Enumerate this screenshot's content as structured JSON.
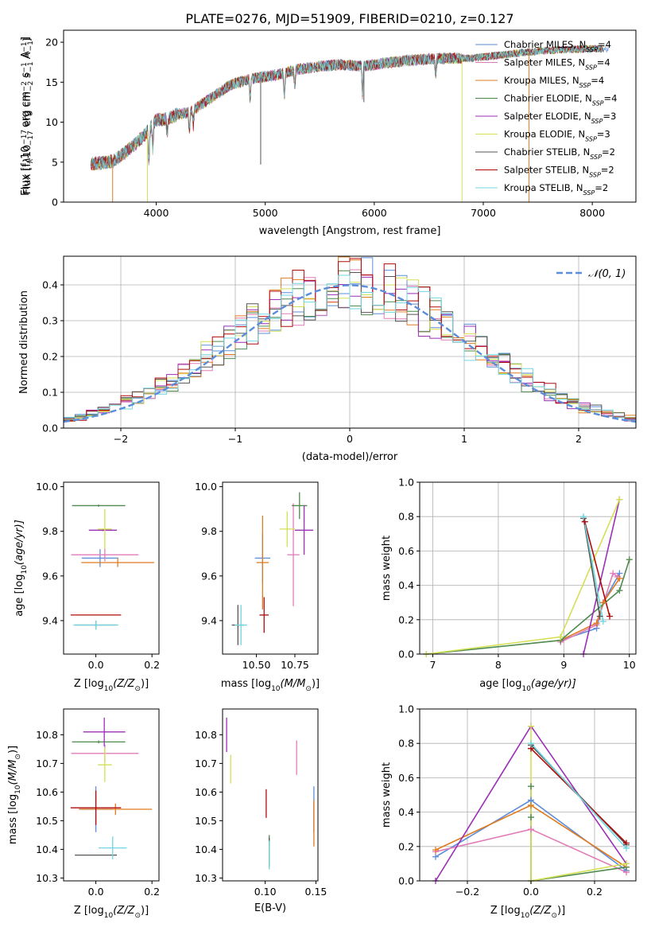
{
  "figure": {
    "title": "PLATE=0276, MJD=51909, FIBERID=0210, z=0.127"
  },
  "colors": {
    "chabrier_miles": "#5b8ddb",
    "salpeter_miles": "#e27cb8",
    "kroupa_miles": "#e07b20",
    "chabrier_elodie": "#4f8a4f",
    "salpeter_elodie": "#9b2fb5",
    "kroupa_elodie": "#d4e055",
    "chabrier_stelib": "#555555",
    "salpeter_stelib": "#b00b0b",
    "kroupa_stelib": "#70d6e0",
    "gauss": "#5b8ddb"
  },
  "chart_data": [
    {
      "id": "spectrum",
      "type": "line",
      "xlabel": "wavelength [Angstrom, rest frame]",
      "ylabel_parts": [
        "Flux [f",
        "λ",
        "10",
        "−17",
        " erg cm",
        "−2",
        " s",
        "−1",
        " A",
        "−1",
        "]"
      ],
      "xlim": [
        3150,
        8400
      ],
      "ylim": [
        0,
        21.5
      ],
      "xticks": [
        4000,
        5000,
        6000,
        7000,
        8000
      ],
      "yticks": [
        0,
        5,
        10,
        15,
        20
      ],
      "grid": false,
      "legend_position": "top-right",
      "legend": [
        {
          "label": "Chabrier MILES, N",
          "sub": "SSP",
          "suffix": "=4",
          "color_key": "chabrier_miles"
        },
        {
          "label": "Salpeter MILES, N",
          "sub": "SSP",
          "suffix": "=4",
          "color_key": "salpeter_miles"
        },
        {
          "label": "Kroupa MILES, N",
          "sub": "SSP",
          "suffix": "=4",
          "color_key": "kroupa_miles"
        },
        {
          "label": "Chabrier ELODIE, N",
          "sub": "SSP",
          "suffix": "=4",
          "color_key": "chabrier_elodie"
        },
        {
          "label": "Salpeter ELODIE, N",
          "sub": "SSP",
          "suffix": "=3",
          "color_key": "salpeter_elodie"
        },
        {
          "label": "Kroupa ELODIE, N",
          "sub": "SSP",
          "suffix": "=3",
          "color_key": "kroupa_elodie"
        },
        {
          "label": "Chabrier STELIB, N",
          "sub": "SSP",
          "suffix": "=2",
          "color_key": "chabrier_stelib"
        },
        {
          "label": "Salpeter STELIB, N",
          "sub": "SSP",
          "suffix": "=2",
          "color_key": "salpeter_stelib"
        },
        {
          "label": "Kroupa STELIB, N",
          "sub": "SSP",
          "suffix": "=2",
          "color_key": "kroupa_stelib"
        }
      ],
      "continuum": {
        "x": [
          3400,
          3500,
          3600,
          3700,
          3800,
          3900,
          4000,
          4100,
          4200,
          4300,
          4500,
          4700,
          4900,
          5100,
          5300,
          5500,
          5700,
          5900,
          6100,
          6300,
          6500,
          6700,
          6900,
          7100,
          7300,
          7500,
          7800,
          8100
        ],
        "y": [
          4.8,
          4.9,
          5.1,
          6.0,
          7.2,
          8.5,
          10.3,
          10.4,
          11.0,
          11.2,
          13.0,
          14.8,
          15.5,
          15.9,
          16.6,
          17.0,
          17.2,
          17.0,
          17.4,
          17.7,
          17.9,
          18.0,
          18.0,
          18.3,
          18.6,
          18.9,
          19.1,
          19.2
        ]
      },
      "dips": [
        {
          "x": 3933,
          "depth": 4.0
        },
        {
          "x": 3968,
          "depth": 3.0
        },
        {
          "x": 4101,
          "depth": 2.0
        },
        {
          "x": 4304,
          "depth": 2.5
        },
        {
          "x": 4340,
          "depth": 2.0
        },
        {
          "x": 4861,
          "depth": 2.5
        },
        {
          "x": 5175,
          "depth": 3.0
        },
        {
          "x": 5270,
          "depth": 2.0
        },
        {
          "x": 5892,
          "depth": 3.5
        },
        {
          "x": 6563,
          "depth": 2.0
        }
      ],
      "glitches": [
        {
          "x": 4958,
          "y": 4.7
        },
        {
          "x": 5905,
          "y": 12.5
        },
        {
          "x": 6805,
          "y": 0
        },
        {
          "x": 7420,
          "y": 0
        },
        {
          "x": 3600,
          "y": 0
        },
        {
          "x": 3920,
          "y": 0
        }
      ]
    },
    {
      "id": "residuals",
      "type": "step",
      "xlabel": "(data-model)/error",
      "ylabel": "Normed distribution",
      "xlim": [
        -2.5,
        2.5
      ],
      "ylim": [
        0,
        0.48
      ],
      "xticks": [
        -2,
        -1,
        0,
        1,
        2
      ],
      "yticks": [
        0.0,
        0.1,
        0.2,
        0.3,
        0.4
      ],
      "grid": true,
      "legend_position": "top-right",
      "gauss_label": "𝒩(0, 1)",
      "bin_width": 0.1
    },
    {
      "id": "age_vs_Z",
      "type": "errorbar",
      "xlabel_parts": [
        "Z [log",
        "10",
        "(Z/Z",
        "⊙",
        ")]"
      ],
      "ylabel_parts": [
        "age  [log",
        "10",
        "(age/yr)]"
      ],
      "xlim": [
        -0.115,
        0.225
      ],
      "ylim": [
        9.25,
        10.02
      ],
      "xticks": [
        0.0,
        0.2
      ],
      "yticks": [
        9.4,
        9.6,
        9.8,
        10.0
      ],
      "points": [
        {
          "c": "chabrier_miles",
          "x": 0.015,
          "y": 9.68,
          "xe": 0.065,
          "ye": 0.04
        },
        {
          "c": "salpeter_miles",
          "x": 0.032,
          "y": 9.695,
          "xe": 0.12,
          "ye": 0.03
        },
        {
          "c": "kroupa_miles",
          "x": 0.078,
          "y": 9.66,
          "xe": 0.13,
          "ye": 0.02
        },
        {
          "c": "chabrier_elodie",
          "x": 0.01,
          "y": 9.915,
          "xe": 0.095,
          "ye": 0.005
        },
        {
          "c": "salpeter_elodie",
          "x": 0.025,
          "y": 9.805,
          "xe": 0.05,
          "ye": 0.004
        },
        {
          "c": "kroupa_elodie",
          "x": 0.032,
          "y": 9.81,
          "xe": 0.025,
          "ye": 0.09
        },
        {
          "c": "chabrier_stelib",
          "x": 0.0,
          "y": 9.38,
          "xe": 0.075,
          "ye": 0.02
        },
        {
          "c": "salpeter_stelib",
          "x": 0.0,
          "y": 9.425,
          "xe": 0.09,
          "ye": 0.0
        },
        {
          "c": "kroupa_stelib",
          "x": 0.0,
          "y": 9.38,
          "xe": 0.08,
          "ye": 0.02
        }
      ]
    },
    {
      "id": "age_vs_mass",
      "type": "errorbar",
      "xlabel_parts": [
        "mass [log",
        "10",
        "(M/M",
        "⊙",
        ")]"
      ],
      "ylabel": "",
      "xlim": [
        10.28,
        10.9
      ],
      "ylim": [
        9.25,
        10.02
      ],
      "xticks": [
        10.5,
        10.75
      ],
      "yticks": [
        9.4,
        9.6,
        9.8,
        10.0
      ],
      "points": [
        {
          "c": "chabrier_miles",
          "x": 10.54,
          "y": 9.68,
          "xe": 0.05,
          "ye": 0.11
        },
        {
          "c": "salpeter_miles",
          "x": 10.74,
          "y": 9.695,
          "xe": 0.04,
          "ye": 0.23
        },
        {
          "c": "kroupa_miles",
          "x": 10.54,
          "y": 9.66,
          "xe": 0.04,
          "ye": 0.21
        },
        {
          "c": "chabrier_elodie",
          "x": 10.78,
          "y": 9.915,
          "xe": 0.05,
          "ye": 0.06
        },
        {
          "c": "salpeter_elodie",
          "x": 10.81,
          "y": 9.805,
          "xe": 0.06,
          "ye": 0.11
        },
        {
          "c": "kroupa_elodie",
          "x": 10.7,
          "y": 9.81,
          "xe": 0.05,
          "ye": 0.08
        },
        {
          "c": "chabrier_stelib",
          "x": 10.38,
          "y": 9.38,
          "xe": 0.04,
          "ye": 0.09
        },
        {
          "c": "salpeter_stelib",
          "x": 10.55,
          "y": 9.425,
          "xe": 0.03,
          "ye": 0.08
        },
        {
          "c": "kroupa_stelib",
          "x": 10.4,
          "y": 9.38,
          "xe": 0.04,
          "ye": 0.09
        }
      ]
    },
    {
      "id": "mw_vs_age",
      "type": "line",
      "xlabel_parts": [
        "age  [log",
        "10",
        "(age/yr)]"
      ],
      "ylabel": "mass weight",
      "xlim": [
        6.8,
        10.1
      ],
      "ylim": [
        0,
        1.0
      ],
      "xticks": [
        7,
        8,
        9,
        10
      ],
      "yticks": [
        0.0,
        0.2,
        0.4,
        0.6,
        0.8,
        1.0
      ],
      "grid": true,
      "series": [
        {
          "c": "chabrier_miles",
          "x": [
            8.95,
            9.5,
            9.6,
            9.85
          ],
          "y": [
            0.08,
            0.15,
            0.3,
            0.47
          ]
        },
        {
          "c": "salpeter_miles",
          "x": [
            8.95,
            9.5,
            9.75,
            9.82
          ],
          "y": [
            0.07,
            0.17,
            0.47,
            0.45
          ]
        },
        {
          "c": "kroupa_miles",
          "x": [
            8.95,
            9.5,
            9.6,
            9.85
          ],
          "y": [
            0.08,
            0.18,
            0.3,
            0.44
          ]
        },
        {
          "c": "chabrier_elodie",
          "x": [
            6.9,
            8.95,
            9.85,
            10.0
          ],
          "y": [
            0.0,
            0.08,
            0.37,
            0.55
          ]
        },
        {
          "c": "salpeter_elodie",
          "x": [
            9.3,
            9.85
          ],
          "y": [
            0.0,
            0.9
          ]
        },
        {
          "c": "kroupa_elodie",
          "x": [
            6.9,
            8.95,
            9.85
          ],
          "y": [
            0.0,
            0.1,
            0.9
          ]
        },
        {
          "c": "chabrier_stelib",
          "x": [
            9.3,
            9.55
          ],
          "y": [
            0.79,
            0.22
          ]
        },
        {
          "c": "salpeter_stelib",
          "x": [
            9.32,
            9.7
          ],
          "y": [
            0.77,
            0.22
          ]
        },
        {
          "c": "kroupa_stelib",
          "x": [
            9.3,
            9.6
          ],
          "y": [
            0.8,
            0.19
          ]
        }
      ]
    },
    {
      "id": "mass_vs_Z",
      "type": "errorbar",
      "xlabel_parts": [
        "Z [log",
        "10",
        "(Z/Z",
        "⊙",
        ")]"
      ],
      "ylabel_parts": [
        "mass [log",
        "10",
        "(M/M",
        "⊙",
        ")]"
      ],
      "xlim": [
        -0.115,
        0.225
      ],
      "ylim": [
        10.29,
        10.89
      ],
      "xticks": [
        0.0,
        0.2
      ],
      "yticks": [
        10.3,
        10.4,
        10.5,
        10.6,
        10.7,
        10.8
      ],
      "points": [
        {
          "c": "chabrier_miles",
          "x": 0.0,
          "y": 10.54,
          "xe": 0.06,
          "ye": 0.08
        },
        {
          "c": "salpeter_miles",
          "x": 0.032,
          "y": 10.735,
          "xe": 0.12,
          "ye": 0.03
        },
        {
          "c": "kroupa_miles",
          "x": 0.07,
          "y": 10.54,
          "xe": 0.13,
          "ye": 0.02
        },
        {
          "c": "chabrier_elodie",
          "x": 0.01,
          "y": 10.775,
          "xe": 0.095,
          "ye": 0.005
        },
        {
          "c": "salpeter_elodie",
          "x": 0.03,
          "y": 10.81,
          "xe": 0.075,
          "ye": 0.05
        },
        {
          "c": "kroupa_elodie",
          "x": 0.032,
          "y": 10.695,
          "xe": 0.025,
          "ye": 0.06
        },
        {
          "c": "chabrier_stelib",
          "x": 0.0,
          "y": 10.38,
          "xe": 0.075,
          "ye": 0.0
        },
        {
          "c": "salpeter_stelib",
          "x": 0.0,
          "y": 10.545,
          "xe": 0.09,
          "ye": 0.06
        },
        {
          "c": "kroupa_stelib",
          "x": 0.06,
          "y": 10.405,
          "xe": 0.05,
          "ye": 0.04
        }
      ]
    },
    {
      "id": "mass_vs_ebv",
      "type": "errorbar",
      "xlabel": "E(B-V)",
      "ylabel": "",
      "xlim": [
        0.058,
        0.152
      ],
      "ylim": [
        10.29,
        10.89
      ],
      "xticks": [
        0.1,
        0.15
      ],
      "yticks": [
        10.3,
        10.4,
        10.5,
        10.6,
        10.7,
        10.8
      ],
      "points": [
        {
          "c": "chabrier_miles",
          "x": 0.148,
          "y": 10.54,
          "xe": 0.0,
          "ye": 0.08
        },
        {
          "c": "salpeter_miles",
          "x": 0.131,
          "y": 10.72,
          "xe": 0.0,
          "ye": 0.06
        },
        {
          "c": "kroupa_miles",
          "x": 0.148,
          "y": 10.49,
          "xe": 0.0,
          "ye": 0.08
        },
        {
          "c": "chabrier_elodie",
          "x": 0.104,
          "y": 10.4,
          "xe": 0.0,
          "ye": 0.05
        },
        {
          "c": "salpeter_elodie",
          "x": 0.062,
          "y": 10.8,
          "xe": 0.0,
          "ye": 0.06
        },
        {
          "c": "kroupa_elodie",
          "x": 0.066,
          "y": 10.68,
          "xe": 0.0,
          "ye": 0.05
        },
        {
          "c": "chabrier_stelib",
          "x": 0.104,
          "y": 10.39,
          "xe": 0.0,
          "ye": 0.05
        },
        {
          "c": "salpeter_stelib",
          "x": 0.101,
          "y": 10.56,
          "xe": 0.0,
          "ye": 0.05
        },
        {
          "c": "kroupa_stelib",
          "x": 0.104,
          "y": 10.38,
          "xe": 0.0,
          "ye": 0.05
        }
      ]
    },
    {
      "id": "mw_vs_Z",
      "type": "line",
      "xlabel_parts": [
        "Z [log",
        "10",
        "(Z/Z",
        "⊙",
        ")]"
      ],
      "ylabel": "mass weight",
      "xlim": [
        -0.35,
        0.33
      ],
      "ylim": [
        0,
        1.0
      ],
      "xticks": [
        -0.2,
        0.0,
        0.2
      ],
      "yticks": [
        0.0,
        0.2,
        0.4,
        0.6,
        0.8,
        1.0
      ],
      "grid": true,
      "series": [
        {
          "c": "chabrier_miles",
          "x": [
            -0.3,
            0.0,
            0.3
          ],
          "y": [
            0.14,
            0.47,
            0.06
          ]
        },
        {
          "c": "salpeter_miles",
          "x": [
            -0.3,
            0.0,
            0.3
          ],
          "y": [
            0.17,
            0.3,
            0.05
          ]
        },
        {
          "c": "kroupa_miles",
          "x": [
            -0.3,
            0.0,
            0.3
          ],
          "y": [
            0.18,
            0.44,
            0.08
          ]
        },
        {
          "c": "chabrier_elodie",
          "x": [
            0.0,
            0.0,
            0.0,
            0.3
          ],
          "y": [
            0.55,
            0.37,
            0.0,
            0.08
          ]
        },
        {
          "c": "salpeter_elodie",
          "x": [
            -0.3,
            0.0,
            0.3
          ],
          "y": [
            0.0,
            0.9,
            0.1
          ]
        },
        {
          "c": "kroupa_elodie",
          "x": [
            0.0,
            0.0,
            0.3
          ],
          "y": [
            0.9,
            0.0,
            0.1
          ]
        },
        {
          "c": "chabrier_stelib",
          "x": [
            0.0,
            0.3
          ],
          "y": [
            0.79,
            0.21
          ]
        },
        {
          "c": "salpeter_stelib",
          "x": [
            0.0,
            0.3
          ],
          "y": [
            0.77,
            0.22
          ]
        },
        {
          "c": "kroupa_stelib",
          "x": [
            0.0,
            0.3
          ],
          "y": [
            0.8,
            0.19
          ]
        }
      ]
    }
  ]
}
